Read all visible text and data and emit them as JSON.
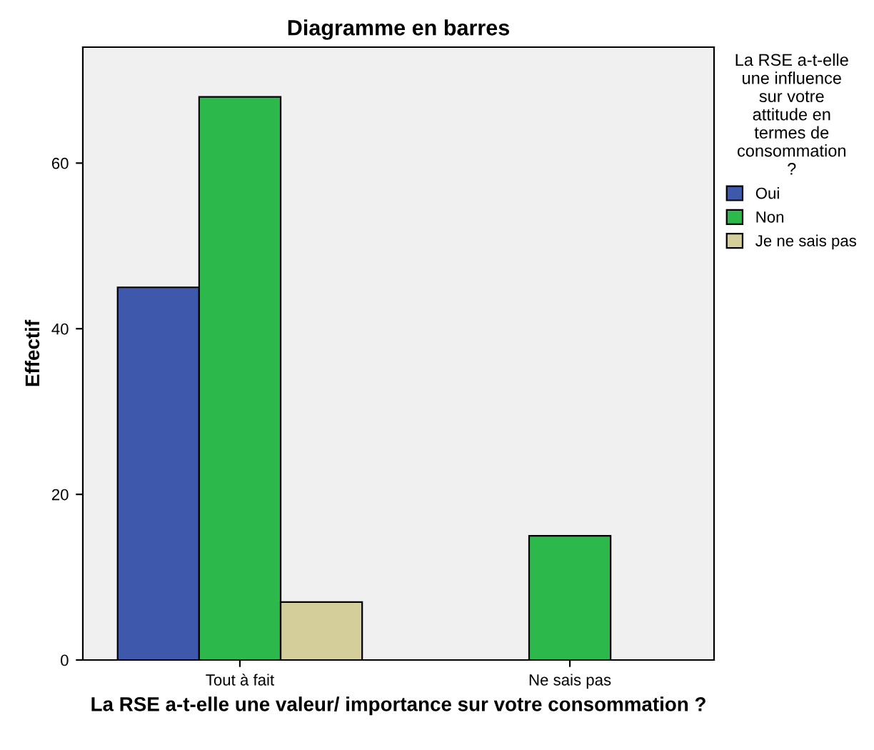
{
  "chart_data": {
    "type": "bar",
    "title": "Diagramme en barres",
    "xlabel": "La RSE a-t-elle une valeur/ importance sur votre consommation ?",
    "ylabel": "Effectif",
    "legend_title": "La RSE a-t-elle\nune influence\nsur votre\nattitude en\ntermes de\nconsommation\n?",
    "categories": [
      "Tout à fait",
      "Ne sais pas"
    ],
    "series": [
      {
        "name": "Oui",
        "color": "#3e58ac",
        "values": [
          45,
          null
        ]
      },
      {
        "name": "Non",
        "color": "#2db84c",
        "values": [
          68,
          15
        ]
      },
      {
        "name": "Je ne sais pas",
        "color": "#d4cf9a",
        "values": [
          7,
          null
        ]
      }
    ],
    "ylim": [
      0,
      74
    ],
    "yticks": [
      0,
      20,
      40,
      60
    ],
    "grid": false,
    "legend": "right"
  }
}
